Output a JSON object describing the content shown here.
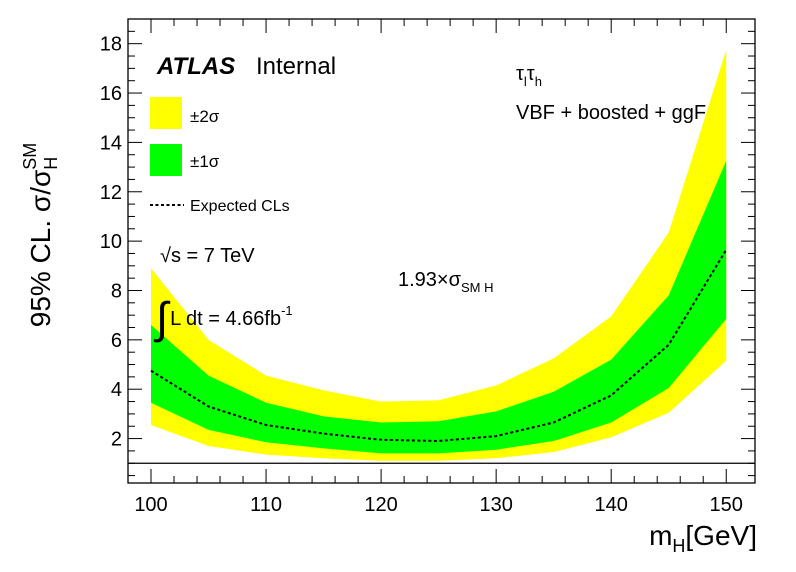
{
  "chart_data": {
    "type": "area",
    "x": [
      100,
      105,
      110,
      115,
      120,
      125,
      130,
      135,
      140,
      145,
      150
    ],
    "series": [
      {
        "name": "Expected CLs",
        "values": [
          4.75,
          3.3,
          2.55,
          2.2,
          1.95,
          1.9,
          2.1,
          2.65,
          3.75,
          5.8,
          9.65
        ]
      }
    ],
    "band_1sigma": {
      "name": "±1σ",
      "low": [
        3.45,
        2.35,
        1.85,
        1.6,
        1.4,
        1.4,
        1.55,
        1.9,
        2.65,
        4.05,
        6.85
      ],
      "high": [
        6.6,
        4.55,
        3.45,
        2.9,
        2.65,
        2.7,
        3.1,
        3.9,
        5.2,
        7.8,
        13.25
      ]
    },
    "band_2sigma": {
      "name": "±2σ",
      "low": [
        2.55,
        1.7,
        1.35,
        1.2,
        1.1,
        1.1,
        1.2,
        1.45,
        2.05,
        3.05,
        5.15
      ],
      "high": [
        8.9,
        6.0,
        4.55,
        3.95,
        3.5,
        3.55,
        4.15,
        5.25,
        6.95,
        10.35,
        17.75
      ]
    },
    "reference_line": 1,
    "xlim": [
      98,
      152.5
    ],
    "ylim": [
      0.2,
      19
    ],
    "x_ticks": [
      "100",
      "110",
      "120",
      "130",
      "140",
      "150"
    ],
    "y_ticks": [
      "2",
      "4",
      "6",
      "8",
      "10",
      "12",
      "14",
      "16",
      "18"
    ],
    "xlabel": "m_H[GeV]",
    "ylabel": "95% CL. σ/σ_H^SM",
    "legend_position": "top-left",
    "colors": {
      "band_2sigma": "#ffff00",
      "band_1sigma": "#00ff00",
      "expected": "#000000"
    },
    "annotations": {
      "atlas": "ATLAS",
      "internal": "Internal",
      "channel": "τ_lτ_h",
      "categories": "VBF + boosted + ggF",
      "sqrt_s": "√s = 7 TeV",
      "lumi": "L dt = 4.66fb⁻¹",
      "limit_value": "1.93×σ_SM H"
    }
  }
}
